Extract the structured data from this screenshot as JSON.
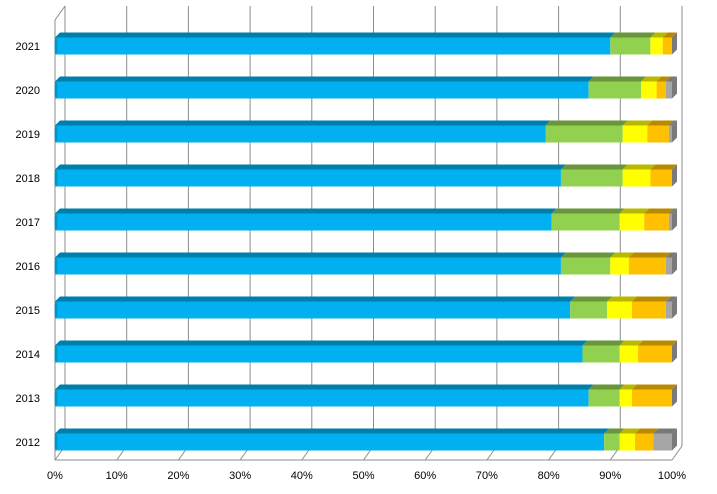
{
  "chart_data": {
    "type": "bar",
    "orientation": "horizontal",
    "stacked": true,
    "normalized_percent": true,
    "three_d": true,
    "grid": true,
    "legend": "none",
    "title": "",
    "xlabel": "",
    "ylabel": "",
    "xlim": [
      0,
      100
    ],
    "x_ticks": [
      "0%",
      "10%",
      "20%",
      "30%",
      "40%",
      "50%",
      "60%",
      "70%",
      "80%",
      "90%",
      "100%"
    ],
    "categories": [
      "2012",
      "2013",
      "2014",
      "2015",
      "2016",
      "2017",
      "2018",
      "2019",
      "2020",
      "2021"
    ],
    "series": [
      {
        "color": "#00B0F0",
        "values": [
          89.0,
          86.5,
          85.5,
          83.5,
          82.0,
          80.5,
          82.0,
          79.5,
          86.5,
          90.0
        ]
      },
      {
        "color": "#92D050",
        "values": [
          2.5,
          5.0,
          6.0,
          6.0,
          8.0,
          11.0,
          10.0,
          12.5,
          8.5,
          6.5
        ]
      },
      {
        "color": "#FFFF00",
        "values": [
          2.5,
          2.0,
          3.0,
          4.0,
          3.0,
          4.0,
          4.5,
          4.0,
          2.5,
          2.0
        ]
      },
      {
        "color": "#FFC000",
        "values": [
          3.0,
          6.5,
          5.5,
          5.5,
          6.0,
          4.0,
          3.5,
          3.5,
          1.5,
          1.5
        ]
      },
      {
        "color": "#A6A6A6",
        "values": [
          3.0,
          0.0,
          0.0,
          1.0,
          1.0,
          0.5,
          0.0,
          0.5,
          1.0,
          0.0
        ]
      }
    ]
  }
}
